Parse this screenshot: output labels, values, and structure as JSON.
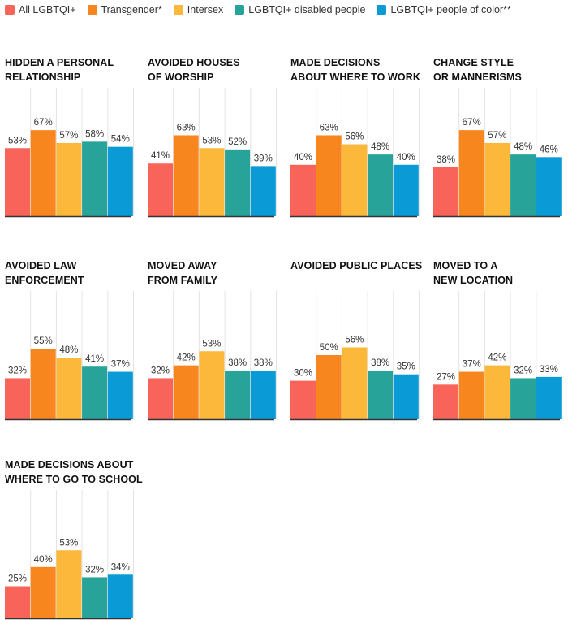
{
  "legend": [
    {
      "label": "All LGBTQI+",
      "color": "#f8635a"
    },
    {
      "label": "Transgender*",
      "color": "#f7861e"
    },
    {
      "label": "Intersex",
      "color": "#fbb83a"
    },
    {
      "label": "LGBTQI+ disabled people",
      "color": "#27a39a"
    },
    {
      "label": "LGBTQI+ people of color**",
      "color": "#0a9ad6"
    }
  ],
  "chart_data": {
    "type": "bar",
    "ylim": [
      0,
      100
    ],
    "grid": true,
    "legend_position": "top",
    "value_suffix": "%",
    "series_names": [
      "All LGBTQI+",
      "Transgender*",
      "Intersex",
      "LGBTQI+ disabled people",
      "LGBTQI+ people of color**"
    ],
    "panels": [
      {
        "title_lines": [
          "HIDDEN A PERSONAL",
          "RELATIONSHIP"
        ],
        "values": [
          53,
          67,
          57,
          58,
          54
        ]
      },
      {
        "title_lines": [
          "AVOIDED HOUSES",
          "OF WORSHIP"
        ],
        "values": [
          41,
          63,
          53,
          52,
          39
        ]
      },
      {
        "title_lines": [
          "MADE DECISIONS",
          "ABOUT WHERE TO WORK"
        ],
        "values": [
          40,
          63,
          56,
          48,
          40
        ]
      },
      {
        "title_lines": [
          "CHANGE STYLE",
          "OR MANNERISMS"
        ],
        "values": [
          38,
          67,
          57,
          48,
          46
        ]
      },
      {
        "title_lines": [
          "AVOIDED LAW",
          "ENFORCEMENT"
        ],
        "values": [
          32,
          55,
          48,
          41,
          37
        ]
      },
      {
        "title_lines": [
          "MOVED AWAY",
          "FROM FAMILY"
        ],
        "values": [
          32,
          42,
          53,
          38,
          38
        ]
      },
      {
        "title_lines": [
          "AVOIDED PUBLIC PLACES"
        ],
        "values": [
          30,
          50,
          56,
          38,
          35
        ]
      },
      {
        "title_lines": [
          "MOVED TO A",
          "NEW LOCATION"
        ],
        "values": [
          27,
          37,
          42,
          32,
          33
        ]
      },
      {
        "title_lines": [
          "MADE DECISIONS ABOUT",
          "WHERE TO GO TO SCHOOL"
        ],
        "values": [
          25,
          40,
          53,
          32,
          34
        ]
      }
    ]
  }
}
